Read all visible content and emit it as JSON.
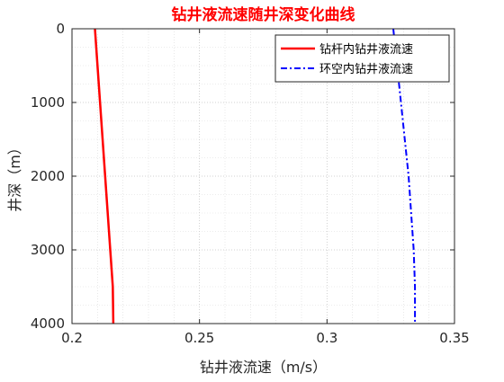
{
  "chart_data": {
    "type": "line",
    "title": "钻井液流速随井深变化曲线",
    "title_color": "#ff0000",
    "xlabel": "钻井液流速（m/s）",
    "ylabel": "井深（m）",
    "xlim": [
      0.2,
      0.35
    ],
    "ylim": [
      0,
      4000
    ],
    "y_reversed": true,
    "xticks": [
      0.2,
      0.25,
      0.3,
      0.35
    ],
    "xtick_labels": [
      "0.2",
      "0.25",
      "0.3",
      "0.35"
    ],
    "yticks": [
      0,
      1000,
      2000,
      3000,
      4000
    ],
    "ytick_labels": [
      "0",
      "1000",
      "2000",
      "3000",
      "4000"
    ],
    "grid": "dotted, with minor grid",
    "legend_position": "top-right",
    "series": [
      {
        "name": "钻杆内钻井液流速",
        "color": "#ff0000",
        "style": "solid",
        "points": [
          [
            0.209,
            0
          ],
          [
            0.21,
            500
          ],
          [
            0.211,
            1000
          ],
          [
            0.212,
            1500
          ],
          [
            0.213,
            2000
          ],
          [
            0.214,
            2500
          ],
          [
            0.215,
            3000
          ],
          [
            0.216,
            3500
          ],
          [
            0.2162,
            4000
          ]
        ]
      },
      {
        "name": "环空内钻井液流速",
        "color": "#0000ff",
        "style": "dashdot",
        "points": [
          [
            0.326,
            0
          ],
          [
            0.3275,
            500
          ],
          [
            0.329,
            1000
          ],
          [
            0.3305,
            1500
          ],
          [
            0.332,
            2000
          ],
          [
            0.333,
            2500
          ],
          [
            0.334,
            3000
          ],
          [
            0.3345,
            3500
          ],
          [
            0.3345,
            4000
          ]
        ]
      }
    ]
  }
}
